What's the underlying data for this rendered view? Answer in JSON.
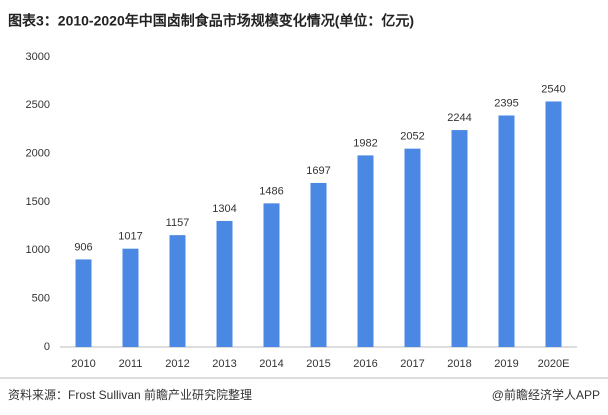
{
  "chart_data": {
    "type": "bar",
    "title": "图表3：2010-2020年中国卤制食品市场规模变化情况(单位：亿元)",
    "categories": [
      "2010",
      "2011",
      "2012",
      "2013",
      "2014",
      "2015",
      "2016",
      "2017",
      "2018",
      "2019",
      "2020E"
    ],
    "values": [
      906,
      1017,
      1157,
      1304,
      1486,
      1697,
      1982,
      2052,
      2244,
      2395,
      2540
    ],
    "color": "#4a88e3",
    "ylim": [
      0,
      3000
    ],
    "yticks": [
      0,
      500,
      1000,
      1500,
      2000,
      2500,
      3000
    ],
    "grid": false,
    "source": "资料来源：Frost Sullivan 前瞻产业研究院整理",
    "brand": "@前瞻经济学人APP"
  }
}
